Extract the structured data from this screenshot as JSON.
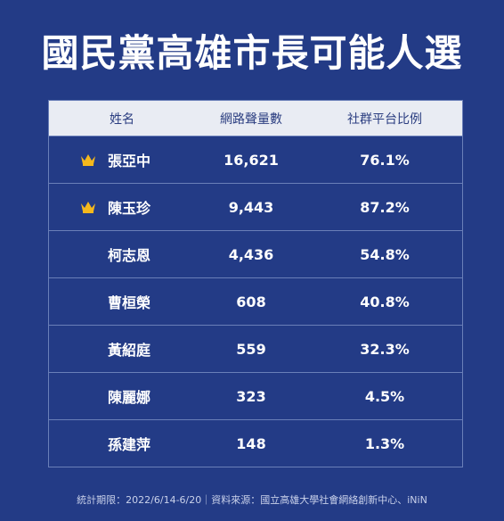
{
  "title": "國民黨高雄市長可能人選",
  "table": {
    "headers": [
      "姓名",
      "網路聲量數",
      "社群平台比例"
    ],
    "rows": [
      {
        "name": "張亞中",
        "volume": "16,621",
        "ratio": "76.1%",
        "crown": true
      },
      {
        "name": "陳玉珍",
        "volume": "9,443",
        "ratio": "87.2%",
        "crown": true
      },
      {
        "name": "柯志恩",
        "volume": "4,436",
        "ratio": "54.8%",
        "crown": false
      },
      {
        "name": "曹桓榮",
        "volume": "608",
        "ratio": "40.8%",
        "crown": false
      },
      {
        "name": "黃紹庭",
        "volume": "559",
        "ratio": "32.3%",
        "crown": false
      },
      {
        "name": "陳麗娜",
        "volume": "323",
        "ratio": "4.5%",
        "crown": false
      },
      {
        "name": "孫建萍",
        "volume": "148",
        "ratio": "1.3%",
        "crown": false
      }
    ]
  },
  "footer": "統計期限：2022/6/14-6/20｜資料來源：國立高雄大學社會網絡創新中心、iNiN",
  "colors": {
    "background": "#233b86",
    "header_bg": "#e9ecf3",
    "crown": "#f5b81c"
  }
}
